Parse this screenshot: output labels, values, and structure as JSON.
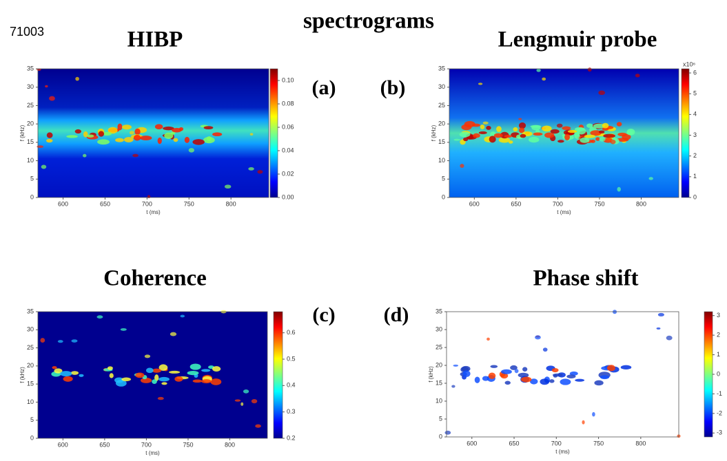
{
  "run_label": "71003",
  "title": "spectrograms",
  "chart_data": [
    {
      "type": "heatmap",
      "title": "HIBP",
      "panel_label": "(a)",
      "xlabel": "t (ms)",
      "ylabel": "f (kHz)",
      "xlim": [
        570,
        845
      ],
      "ylim": [
        0,
        35
      ],
      "xticks": [
        600,
        650,
        700,
        750,
        800
      ],
      "yticks": [
        0,
        5,
        10,
        15,
        20,
        25,
        30,
        35
      ],
      "clim": [
        0,
        0.11
      ],
      "cticks": [
        {
          "value": 0,
          "label": "0.00"
        },
        0.02,
        0.04,
        0.06,
        0.08,
        {
          "value": 0.1,
          "label": "0.10"
        }
      ]
    },
    {
      "type": "heatmap",
      "title": "Lengmuir probe",
      "panel_label": "(b)",
      "xlabel": "t (ms)",
      "ylabel": "f (kHz)",
      "xlim": [
        570,
        845
      ],
      "ylim": [
        0,
        35
      ],
      "xticks": [
        600,
        650,
        700,
        750,
        800
      ],
      "yticks": [
        0,
        5,
        10,
        15,
        20,
        25,
        30,
        35
      ],
      "clim": [
        0,
        6.2
      ],
      "cticks": [
        0,
        1,
        2,
        3,
        4,
        5,
        6
      ],
      "cscale_label": "x10⁶"
    },
    {
      "type": "heatmap",
      "title": "Coherence",
      "panel_label": "(c)",
      "xlabel": "t (ms)",
      "ylabel": "f (kHz)",
      "xlim": [
        570,
        845
      ],
      "ylim": [
        0,
        35
      ],
      "xticks": [
        600,
        650,
        700,
        750,
        800
      ],
      "yticks": [
        0,
        5,
        10,
        15,
        20,
        25,
        30,
        35
      ],
      "clim": [
        0.2,
        0.68
      ],
      "cticks": [
        0.2,
        0.3,
        0.4,
        0.5,
        0.6
      ]
    },
    {
      "type": "heatmap",
      "title": "Phase shift",
      "panel_label": "(d)",
      "xlabel": "t (ms)",
      "ylabel": "f (kHz)",
      "xlim": [
        570,
        845
      ],
      "ylim": [
        0,
        35
      ],
      "xticks": [
        600,
        650,
        700,
        750,
        800
      ],
      "yticks": [
        0,
        5,
        10,
        15,
        20,
        25,
        30,
        35
      ],
      "clim": [
        -3.2,
        3.2
      ],
      "cticks": [
        -3,
        -2,
        -1,
        0,
        1,
        2,
        3
      ]
    }
  ]
}
